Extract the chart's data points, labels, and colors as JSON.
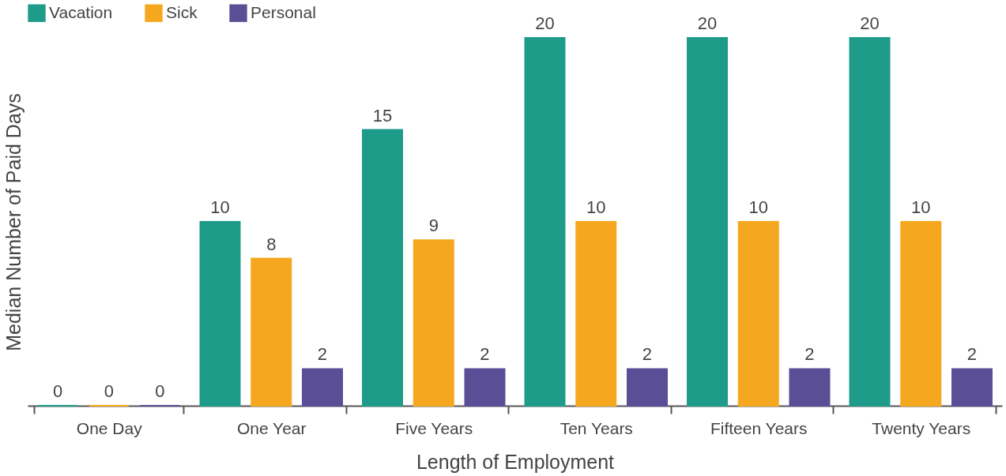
{
  "chart_data": {
    "type": "bar",
    "xlabel": "Length of Employment",
    "ylabel": "Median Number of Paid Days",
    "categories": [
      "One Day",
      "One Year",
      "Five Years",
      "Ten Years",
      "Fifteen Years",
      "Twenty Years"
    ],
    "series": [
      {
        "name": "Vacation",
        "color": "#1f9b8a",
        "values": [
          0,
          10,
          15,
          20,
          20,
          20
        ]
      },
      {
        "name": "Sick",
        "color": "#f5a81f",
        "values": [
          0,
          8,
          9,
          10,
          10,
          10
        ]
      },
      {
        "name": "Personal",
        "color": "#5a4f96",
        "values": [
          0,
          2,
          2,
          2,
          2,
          2
        ]
      }
    ],
    "data_labels": true,
    "legend": "top left",
    "grid": false
  }
}
